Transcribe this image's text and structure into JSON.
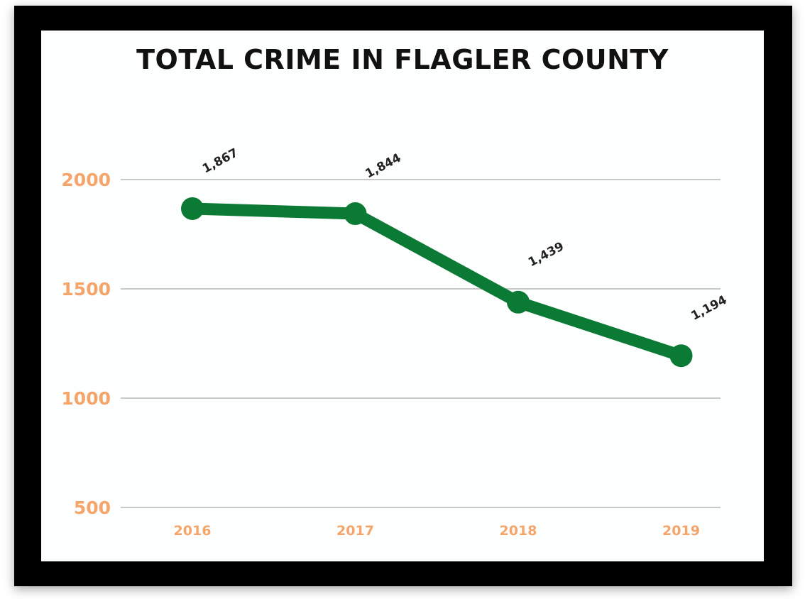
{
  "chart_data": {
    "type": "line",
    "title": "TOTAL CRIME IN FLAGLER COUNTY",
    "categories": [
      "2016",
      "2017",
      "2018",
      "2019"
    ],
    "series": [
      {
        "values": [
          1867,
          1844,
          1439,
          1194
        ],
        "value_labels": [
          "1,867",
          "1,844",
          "1,439",
          "1,194"
        ]
      }
    ],
    "y_ticks": [
      500,
      1000,
      1500,
      2000
    ],
    "y_tick_labels": [
      "500",
      "1000",
      "1500",
      "2000"
    ],
    "ylim": [
      500,
      2000
    ],
    "xlabel": "",
    "ylabel": "",
    "grid": true,
    "legend": "none",
    "colors": {
      "line": "#0a7a35",
      "tick_labels": "#f5a46a",
      "gridline": "#c8c8c8",
      "frame": "#000000",
      "background": "#fdfefe"
    }
  }
}
